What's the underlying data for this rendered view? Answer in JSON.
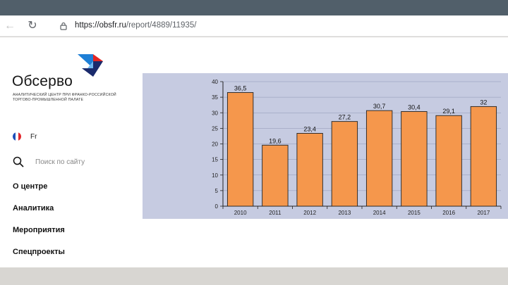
{
  "browser": {
    "url_host": "https://obsfr.ru",
    "url_path": "/report/4889/11935/"
  },
  "sidebar": {
    "logo_title": "Обсерво",
    "logo_subtitle": "Аналитический центр при Франко-Российской торгово-промышленной палате",
    "language_label": "Fr",
    "search_placeholder": "Поиск по сайту",
    "menu": [
      {
        "label": "О центре"
      },
      {
        "label": "Аналитика"
      },
      {
        "label": "Мероприятия"
      },
      {
        "label": "Спецпроекты"
      }
    ]
  },
  "colors": {
    "bar": "#f5974c",
    "chart_bg": "#c6cbe1",
    "top_bar": "#515f6a"
  },
  "chart_data": {
    "type": "bar",
    "categories": [
      "2010",
      "2011",
      "2012",
      "2013",
      "2014",
      "2015",
      "2016",
      "2017"
    ],
    "values": [
      36.5,
      19.6,
      23.4,
      27.2,
      30.7,
      30.4,
      29.1,
      32
    ],
    "data_labels": [
      "36,5",
      "19,6",
      "23,4",
      "27,2",
      "30,7",
      "30,4",
      "29,1",
      "32"
    ],
    "yticks": [
      0,
      5,
      10,
      15,
      20,
      25,
      30,
      35,
      40
    ],
    "ylim": [
      0,
      40
    ],
    "grid": true,
    "title": "",
    "xlabel": "",
    "ylabel": ""
  }
}
